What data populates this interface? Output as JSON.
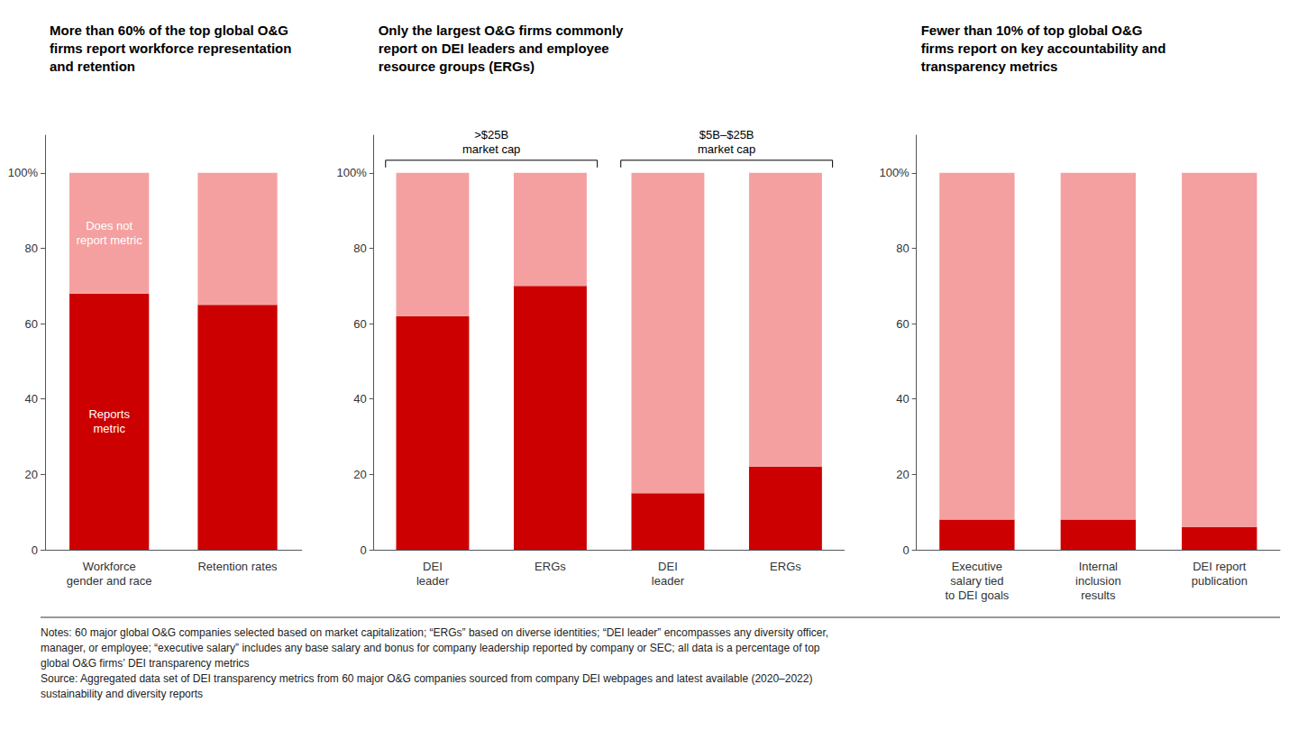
{
  "chart_data": [
    {
      "type": "bar",
      "stacked": true,
      "title": "More than 60% of the top global O&G\nfirms report workforce representation\nand retention",
      "categories": [
        "Workforce\ngender and race",
        "Retention rates"
      ],
      "series": [
        {
          "name": "Reports\nmetric",
          "color": "#CC0000",
          "values": [
            68,
            65
          ]
        },
        {
          "name": "Does not\nreport metric",
          "color": "#F5A0A0",
          "values": [
            32,
            35
          ]
        }
      ],
      "ylim": [
        0,
        110
      ],
      "yticks": [
        0,
        20,
        40,
        60,
        80,
        {
          "value": 100,
          "label": "100%"
        }
      ],
      "grid": false
    },
    {
      "type": "bar",
      "stacked": true,
      "title": "Only the largest O&G firms commonly\nreport on DEI leaders and employee\nresource groups (ERGs)",
      "categories": [
        "DEI\nleader",
        "ERGs",
        "DEI\nleader",
        "ERGs"
      ],
      "series": [
        {
          "color": "#CC0000",
          "values": [
            62,
            70,
            15,
            22
          ]
        },
        {
          "color": "#F5A0A0",
          "values": [
            38,
            30,
            85,
            78
          ]
        }
      ],
      "annotations": [
        {
          "text": ">$25B\nmarket cap",
          "bars": [
            0,
            1
          ]
        },
        {
          "text": "$5B–$25B\nmarket cap",
          "bars": [
            2,
            3
          ]
        }
      ],
      "ylim": [
        0,
        110
      ],
      "yticks": [
        0,
        20,
        40,
        60,
        80,
        {
          "value": 100,
          "label": "100%"
        }
      ],
      "grid": false
    },
    {
      "type": "bar",
      "stacked": true,
      "title": "Fewer than 10% of top global O&G\nfirms report on key accountability and\ntransparency metrics",
      "categories": [
        "Executive\nsalary tied\nto DEI goals",
        "Internal\ninclusion\nresults",
        "DEI report\npublication"
      ],
      "series": [
        {
          "color": "#CC0000",
          "values": [
            8,
            8,
            6
          ]
        },
        {
          "color": "#F5A0A0",
          "values": [
            92,
            92,
            94
          ]
        }
      ],
      "ylim": [
        0,
        110
      ],
      "yticks": [
        0,
        20,
        40,
        60,
        80,
        {
          "value": 100,
          "label": "100%"
        }
      ],
      "grid": false
    }
  ],
  "notes": "Notes: 60 major global O&G companies selected based on market capitalization; “ERGs” based on diverse identities; “DEI leader” encompasses any diversity officer,\nmanager, or employee; “executive salary” includes any base salary and bonus for company leadership reported by company or SEC; all data is a percentage of top\nglobal O&G firms’ DEI transparency metrics\nSource: Aggregated data set of DEI transparency metrics from 60 major O&G companies sourced from company DEI webpages and latest available (2020–2022)\nsustainability and diversity reports"
}
